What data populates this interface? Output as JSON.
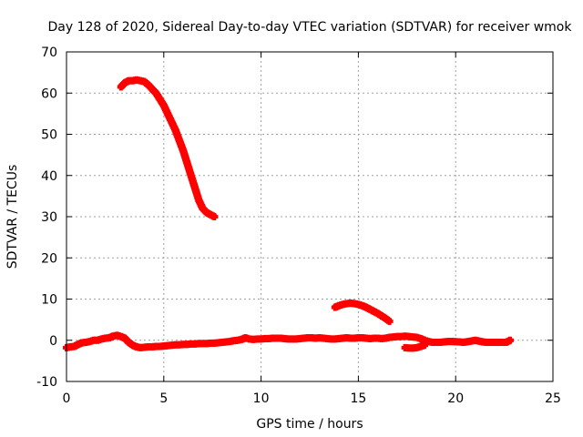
{
  "chart_data": {
    "type": "scatter",
    "title": "Day 128 of 2020, Sidereal Day-to-day VTEC variation (SDTVAR) for receiver wmok",
    "xlabel": "GPS time / hours",
    "ylabel": "SDTVAR / TECUs",
    "xlim": [
      0,
      25
    ],
    "ylim": [
      -10,
      70
    ],
    "xticks": [
      0,
      5,
      10,
      15,
      20,
      25
    ],
    "yticks": [
      -10,
      0,
      10,
      20,
      30,
      40,
      50,
      60,
      70
    ],
    "grid": true,
    "color": "#ff0000",
    "series": [
      {
        "name": "baseline",
        "x": [
          0.0,
          0.2,
          0.4,
          0.6,
          0.8,
          1.0,
          1.2,
          1.4,
          1.6,
          1.8,
          2.0,
          2.2,
          2.4,
          2.6,
          2.8,
          3.0,
          3.2,
          3.4,
          3.6,
          3.8,
          4.0,
          4.2,
          4.4,
          4.6,
          4.8,
          5.0,
          5.2,
          5.4,
          5.6,
          5.8,
          6.0,
          6.2,
          6.4,
          6.6,
          6.8,
          7.0,
          7.2,
          7.4,
          7.6,
          7.8,
          8.0,
          8.2,
          8.4,
          8.6,
          8.8,
          9.0,
          9.2,
          9.4,
          9.6,
          9.8,
          10.0,
          10.2,
          10.4,
          10.6,
          10.8,
          11.0,
          11.2,
          11.4,
          11.6,
          11.8,
          12.0,
          12.2,
          12.4,
          12.6,
          12.8,
          13.0,
          13.2,
          13.4,
          13.6,
          13.8,
          14.0,
          14.2,
          14.4,
          14.6,
          14.8,
          15.0,
          15.2,
          15.4,
          15.6,
          15.8,
          16.0,
          16.2,
          16.4,
          16.6,
          16.8,
          17.0,
          17.2,
          17.4,
          17.6,
          17.8,
          18.0,
          18.2,
          18.4,
          18.6,
          18.8,
          19.0,
          19.2,
          19.4,
          19.6,
          19.8,
          20.2,
          20.4,
          20.8,
          21.0,
          21.4,
          21.6,
          21.8,
          22.0,
          22.2,
          22.4,
          22.6,
          22.8
        ],
        "y": [
          -1.8,
          -1.6,
          -1.5,
          -1.0,
          -0.6,
          -0.5,
          -0.3,
          0.0,
          0.0,
          0.3,
          0.5,
          0.6,
          1.0,
          1.2,
          0.9,
          0.5,
          -0.5,
          -1.2,
          -1.6,
          -1.8,
          -1.7,
          -1.6,
          -1.6,
          -1.5,
          -1.5,
          -1.4,
          -1.3,
          -1.2,
          -1.1,
          -1.1,
          -1.0,
          -1.0,
          -0.9,
          -0.9,
          -0.8,
          -0.8,
          -0.8,
          -0.7,
          -0.7,
          -0.6,
          -0.5,
          -0.4,
          -0.3,
          -0.1,
          0.0,
          0.2,
          0.6,
          0.3,
          0.2,
          0.3,
          0.3,
          0.4,
          0.4,
          0.5,
          0.5,
          0.5,
          0.4,
          0.3,
          0.3,
          0.3,
          0.4,
          0.5,
          0.6,
          0.6,
          0.5,
          0.6,
          0.5,
          0.4,
          0.3,
          0.3,
          0.4,
          0.5,
          0.6,
          0.5,
          0.5,
          0.6,
          0.6,
          0.5,
          0.4,
          0.5,
          0.5,
          0.4,
          0.5,
          0.7,
          0.8,
          0.9,
          0.9,
          1.0,
          0.9,
          0.8,
          0.7,
          0.4,
          0.0,
          -0.3,
          -0.5,
          -0.5,
          -0.5,
          -0.4,
          -0.3,
          -0.3,
          -0.4,
          -0.5,
          -0.2,
          0.0,
          -0.4,
          -0.5,
          -0.5,
          -0.5,
          -0.5,
          -0.5,
          -0.5,
          0.0
        ]
      },
      {
        "name": "baseline-dip",
        "x": [
          17.4,
          17.6,
          17.8,
          18.0,
          18.2,
          18.4
        ],
        "y": [
          -1.8,
          -1.9,
          -1.9,
          -1.8,
          -1.5,
          -1.2
        ]
      },
      {
        "name": "arc-1",
        "x": [
          2.8,
          3.0,
          3.2,
          3.4,
          3.6,
          3.8,
          4.0,
          4.2,
          4.4,
          4.6,
          4.8,
          5.0,
          5.2,
          5.4,
          5.6,
          5.8,
          6.0,
          6.2,
          6.4,
          6.6,
          6.8,
          7.0,
          7.2,
          7.4,
          7.6
        ],
        "y": [
          61.5,
          62.5,
          63.0,
          63.0,
          63.2,
          63.0,
          62.8,
          62.0,
          61.0,
          60.0,
          58.5,
          57.0,
          55.0,
          53.0,
          51.0,
          48.5,
          46.0,
          43.0,
          40.0,
          37.0,
          34.0,
          32.0,
          31.0,
          30.5,
          30.0
        ]
      },
      {
        "name": "arc-2",
        "x": [
          13.8,
          14.0,
          14.2,
          14.4,
          14.6,
          14.8,
          15.0,
          15.2,
          15.4,
          15.6,
          15.8,
          16.0,
          16.2,
          16.4,
          16.6
        ],
        "y": [
          8.0,
          8.4,
          8.7,
          8.9,
          9.0,
          8.9,
          8.7,
          8.4,
          8.0,
          7.5,
          7.0,
          6.5,
          5.9,
          5.3,
          4.6
        ]
      }
    ]
  }
}
